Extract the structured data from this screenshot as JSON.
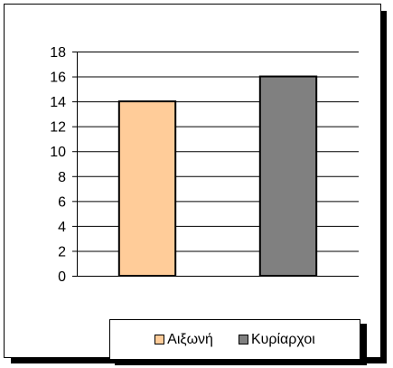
{
  "chart_data": {
    "type": "bar",
    "categories": [
      "Αιξωνή",
      "Κυρίαρχοι"
    ],
    "values": [
      14,
      16
    ],
    "colors": [
      "#ffcc99",
      "#808080"
    ],
    "title": "",
    "xlabel": "",
    "ylabel": "",
    "ylim": [
      0,
      18
    ],
    "yticks": [
      "0",
      "2",
      "4",
      "6",
      "8",
      "10",
      "12",
      "14",
      "16",
      "18"
    ],
    "grid": true,
    "legend_placement": "bottom"
  },
  "legend": {
    "items": [
      {
        "label": "Αιξωνή",
        "color": "#ffcc99"
      },
      {
        "label": "Κυρίαρχοι",
        "color": "#808080"
      }
    ]
  }
}
